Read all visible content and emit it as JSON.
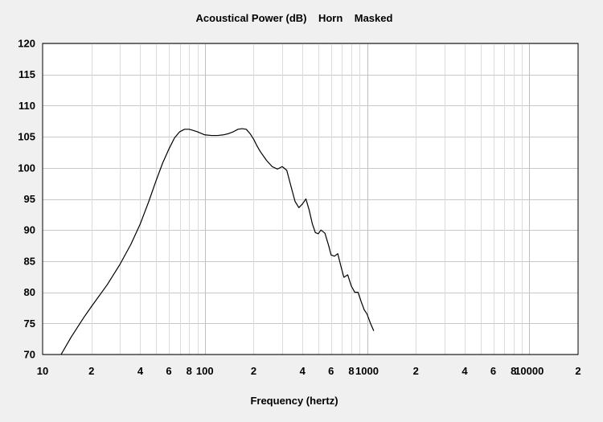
{
  "chart_data": {
    "type": "line",
    "title": "Acoustical Power (dB)    Horn    Masked",
    "xlabel": "Frequency (hertz)",
    "ylabel": "",
    "xscale": "log",
    "xlim": [
      10,
      20000
    ],
    "ylim": [
      70,
      120
    ],
    "grid": true,
    "y_ticks": [
      "120",
      "115",
      "110",
      "105",
      "100",
      "95",
      "90",
      "85",
      "80",
      "75",
      "70"
    ],
    "x_ticks": [
      {
        "value": 10,
        "label": "10"
      },
      {
        "value": 20,
        "label": "2"
      },
      {
        "value": 40,
        "label": "4"
      },
      {
        "value": 60,
        "label": "6"
      },
      {
        "value": 80,
        "label": "8"
      },
      {
        "value": 100,
        "label": "100"
      },
      {
        "value": 200,
        "label": "2"
      },
      {
        "value": 400,
        "label": "4"
      },
      {
        "value": 600,
        "label": "6"
      },
      {
        "value": 800,
        "label": "8"
      },
      {
        "value": 1000,
        "label": "1000"
      },
      {
        "value": 2000,
        "label": "2"
      },
      {
        "value": 4000,
        "label": "4"
      },
      {
        "value": 6000,
        "label": "6"
      },
      {
        "value": 8000,
        "label": "8"
      },
      {
        "value": 10000,
        "label": "10000"
      },
      {
        "value": 20000,
        "label": "2"
      }
    ],
    "series": [
      {
        "color": "#000000",
        "x": [
          13,
          15,
          18,
          20,
          25,
          30,
          35,
          40,
          45,
          50,
          55,
          60,
          65,
          70,
          75,
          80,
          85,
          90,
          100,
          110,
          120,
          130,
          140,
          150,
          160,
          170,
          180,
          190,
          200,
          210,
          220,
          240,
          260,
          280,
          300,
          320,
          340,
          360,
          380,
          400,
          420,
          440,
          460,
          480,
          500,
          520,
          550,
          580,
          600,
          630,
          660,
          690,
          720,
          760,
          800,
          840,
          880,
          920,
          960,
          1000,
          1050,
          1100
        ],
        "values": [
          70.0,
          72.8,
          76.0,
          77.7,
          81.2,
          84.5,
          87.7,
          91.0,
          94.5,
          97.9,
          100.8,
          103.0,
          104.8,
          105.8,
          106.2,
          106.2,
          106.0,
          105.8,
          105.3,
          105.2,
          105.2,
          105.3,
          105.5,
          105.8,
          106.2,
          106.3,
          106.2,
          105.5,
          104.6,
          103.5,
          102.6,
          101.2,
          100.2,
          99.8,
          100.2,
          99.6,
          97.0,
          94.6,
          93.6,
          94.2,
          95.0,
          93.2,
          91.0,
          89.6,
          89.4,
          90.0,
          89.5,
          87.5,
          86.0,
          85.8,
          86.2,
          84.2,
          82.4,
          82.8,
          81.0,
          80.0,
          80.0,
          78.5,
          77.2,
          76.5,
          75.0,
          73.8
        ]
      }
    ]
  }
}
